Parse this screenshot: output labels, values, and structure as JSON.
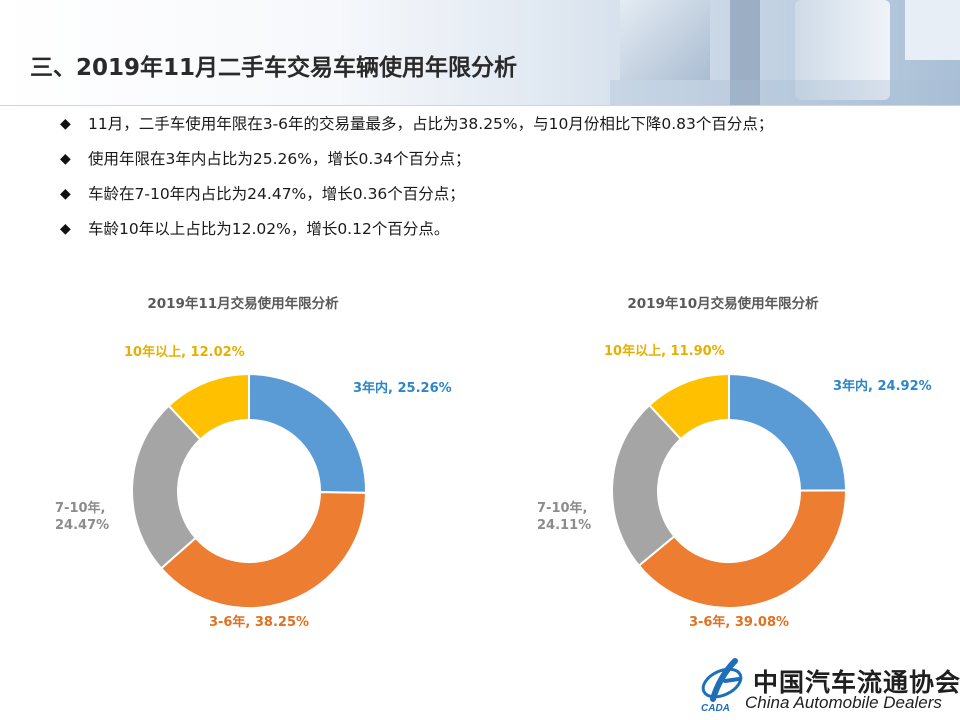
{
  "slide": {
    "title": "三、2019年11月二手车交易车辆使用年限分析",
    "bullets": [
      "11月，二手车使用年限在3-6年的交易量最多，占比为38.25%，与10月份相比下降0.83个百分点；",
      "使用年限在3年内占比为25.26%，增长0.34个百分点；",
      "车龄在7-10年内占比为24.47%，增长0.36个百分点；",
      "车龄10年以上占比为12.02%，增长0.12个百分点。"
    ],
    "bullet_marker": "◆"
  },
  "chart_data": [
    {
      "type": "pie",
      "donut": true,
      "title": "2019年11月交易使用年限分析",
      "categories": [
        "3年内",
        "3-6年",
        "7-10年",
        "10年以上"
      ],
      "values": [
        25.26,
        38.25,
        24.47,
        12.02
      ],
      "labels": [
        "3年内, 25.26%",
        "3-6年, 38.25%",
        "7-10年, 24.47%",
        "10年以上, 12.02%"
      ],
      "colors": [
        "#5b9bd5",
        "#ed7d31",
        "#a5a5a5",
        "#ffc000"
      ]
    },
    {
      "type": "pie",
      "donut": true,
      "title": "2019年10月交易使用年限分析",
      "categories": [
        "3年内",
        "3-6年",
        "7-10年",
        "10年以上"
      ],
      "values": [
        24.92,
        39.08,
        24.11,
        11.9
      ],
      "labels": [
        "3年内, 24.92%",
        "3-6年, 39.08%",
        "7-10年, 24.11%",
        "10年以上, 11.90%"
      ],
      "colors": [
        "#5b9bd5",
        "#ed7d31",
        "#a5a5a5",
        "#ffc000"
      ]
    }
  ],
  "logo": {
    "name_cn": "中国汽车流通协会",
    "name_en": "China Automobile Dealers",
    "mark_text": "CADA"
  }
}
